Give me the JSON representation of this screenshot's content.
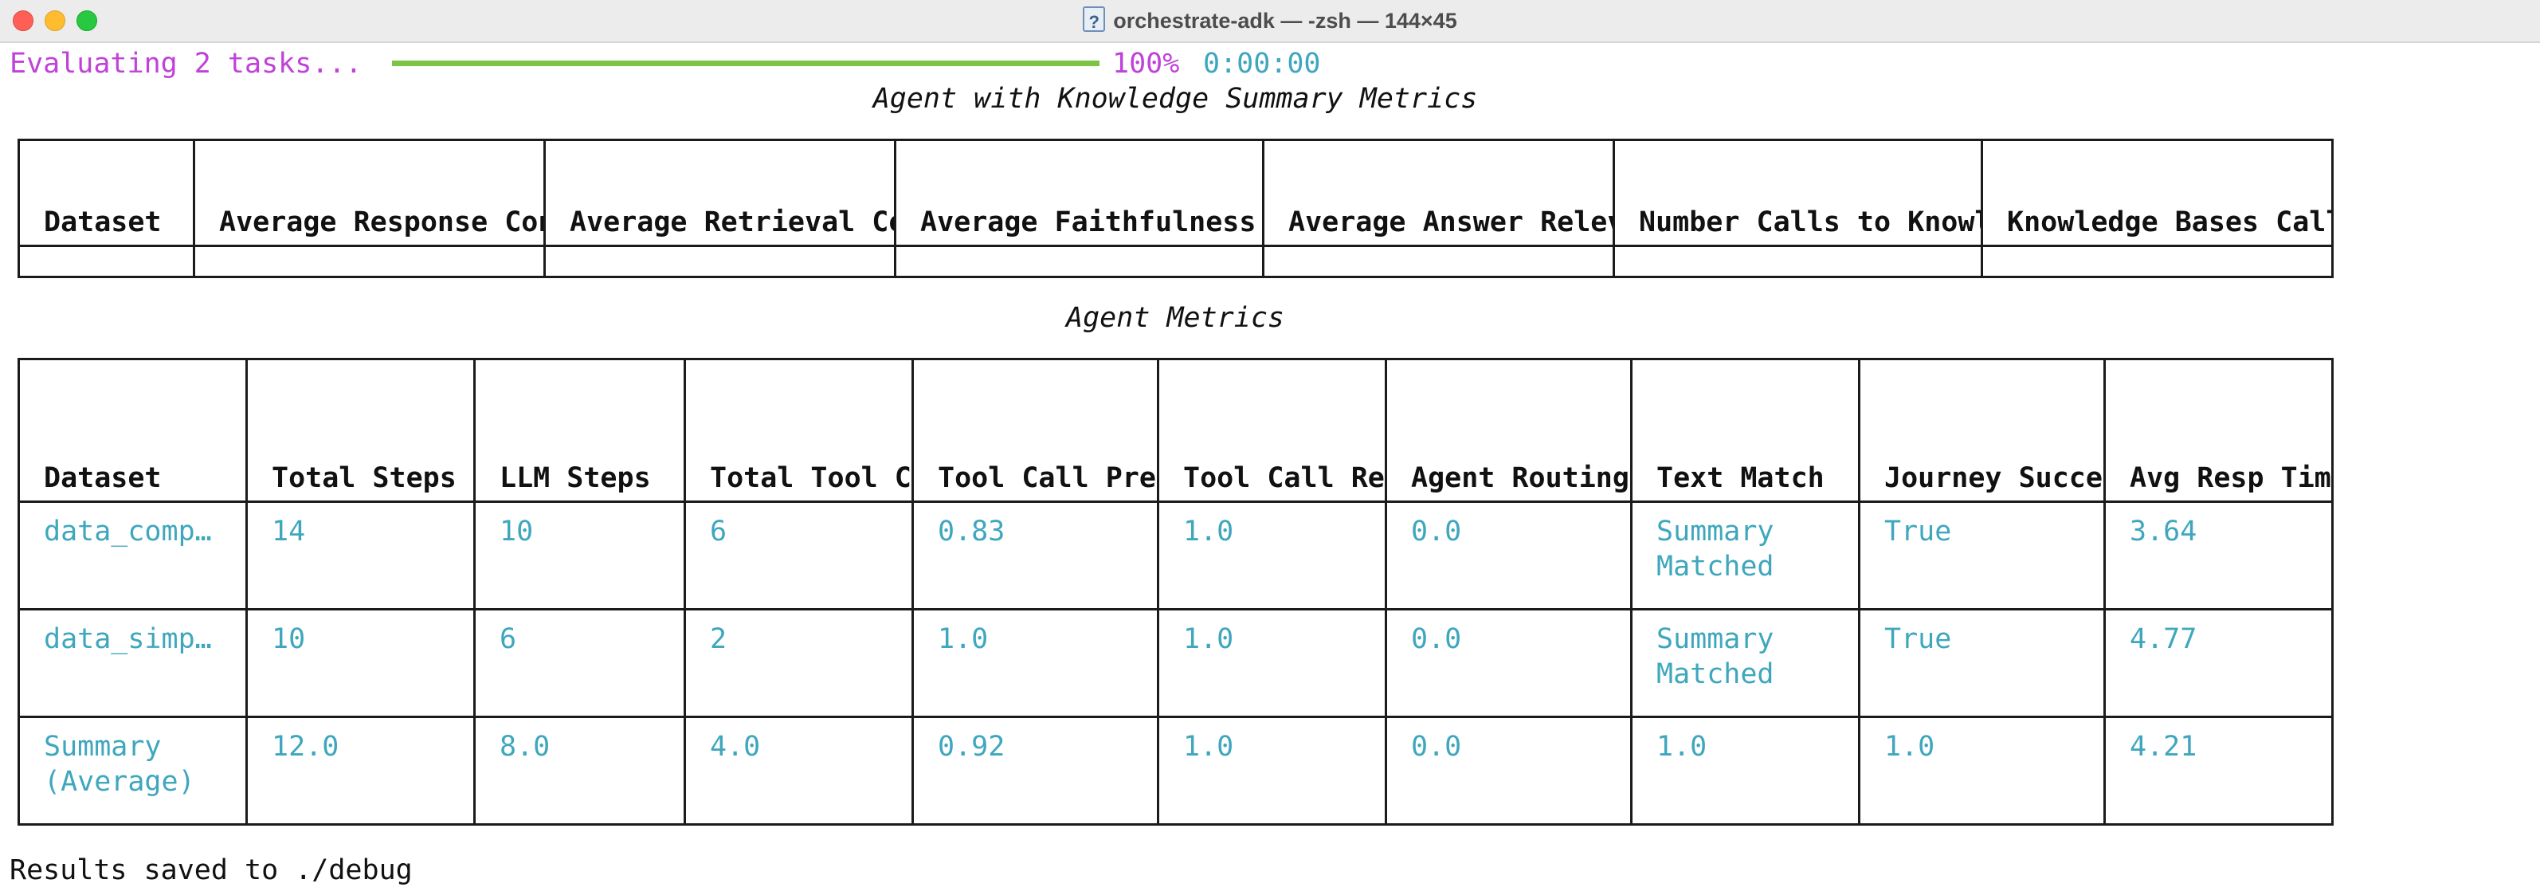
{
  "window": {
    "title": "orchestrate-adk — -zsh — 144×45"
  },
  "progress": {
    "label": "Evaluating 2 tasks...",
    "fraction": 1.0,
    "percent_text": "100%",
    "elapsed": "0:00:00",
    "colors": {
      "label": "#c042d8",
      "bar": "#7cc444",
      "time": "#3fa7bd"
    }
  },
  "kb_table": {
    "title": "Agent with Knowledge Summary Metrics",
    "headers": [
      "Dataset",
      "Average Response Confidence",
      "Average Retrieval Confidence",
      "Average Faithfulness",
      "Average Answer Relevancy",
      "Number Calls to Knowledge Bases",
      "Knowledge Bases Called"
    ]
  },
  "agent_table": {
    "title": "Agent Metrics",
    "headers": [
      "Dataset",
      "Total Steps",
      "LLM Steps",
      "Total Tool Calls",
      "Tool Call Precision",
      "Tool Call Recall",
      "Agent Routing Accuracy",
      "Text Match",
      "Journey Success",
      "Avg Resp Time (sec)"
    ],
    "rows": [
      [
        "data_comp…",
        "14",
        "10",
        "6",
        "0.83",
        "1.0",
        "0.0",
        "Summary Matched",
        "True",
        "3.64"
      ],
      [
        "data_simp…",
        "10",
        "6",
        "2",
        "1.0",
        "1.0",
        "0.0",
        "Summary Matched",
        "True",
        "4.77"
      ],
      [
        "Summary (Average)",
        "12.0",
        "8.0",
        "4.0",
        "0.92",
        "1.0",
        "0.0",
        "1.0",
        "1.0",
        "4.21"
      ]
    ],
    "value_color": "#3fa7bd"
  },
  "footer": {
    "results_text": "Results saved to ./debug"
  }
}
